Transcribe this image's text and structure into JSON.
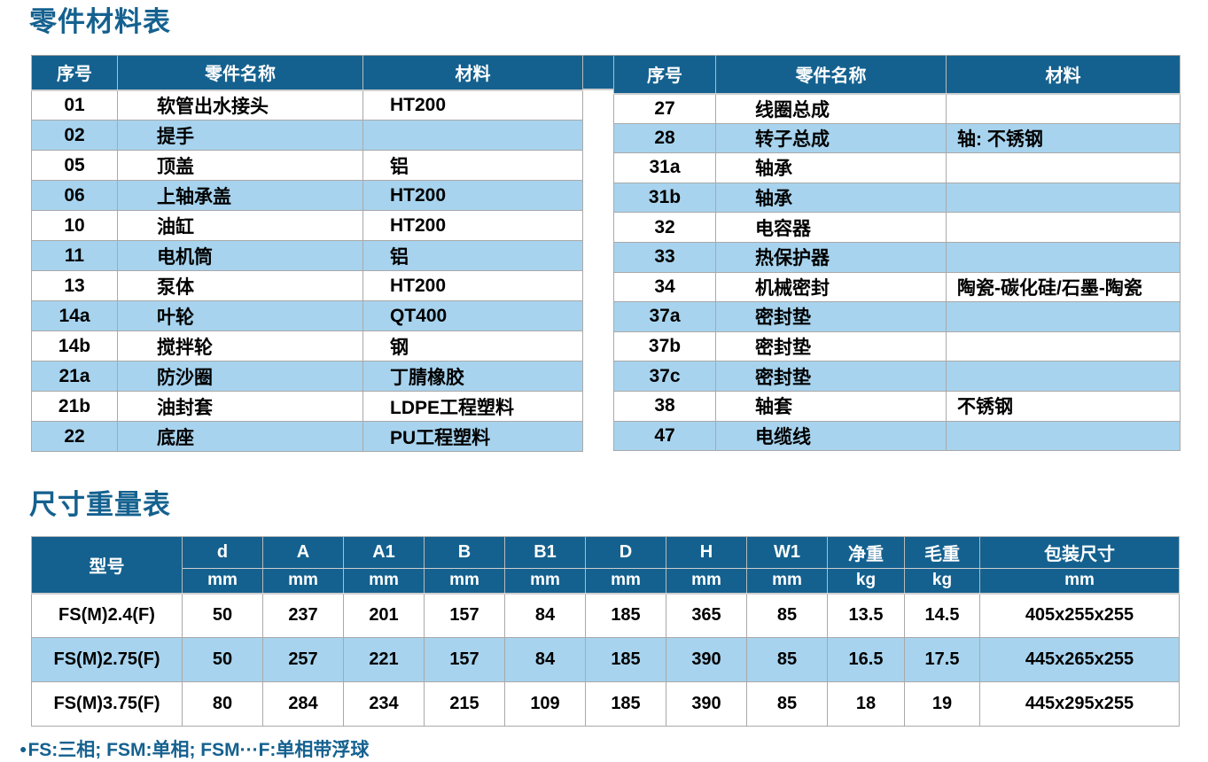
{
  "parts_section": {
    "title": "零件材料表",
    "headers": [
      "序号",
      "零件名称",
      "材料"
    ],
    "left_rows": [
      {
        "no": "01",
        "name": "软管出水接头",
        "material": "HT200"
      },
      {
        "no": "02",
        "name": "提手",
        "material": ""
      },
      {
        "no": "05",
        "name": "顶盖",
        "material": "铝"
      },
      {
        "no": "06",
        "name": "上轴承盖",
        "material": "HT200"
      },
      {
        "no": "10",
        "name": "油缸",
        "material": "HT200"
      },
      {
        "no": "11",
        "name": "电机筒",
        "material": "铝"
      },
      {
        "no": "13",
        "name": "泵体",
        "material": "HT200"
      },
      {
        "no": "14a",
        "name": "叶轮",
        "material": "QT400"
      },
      {
        "no": "14b",
        "name": "搅拌轮",
        "material": "钢"
      },
      {
        "no": "21a",
        "name": "防沙圈",
        "material": "丁腈橡胶"
      },
      {
        "no": "21b",
        "name": "油封套",
        "material": "LDPE工程塑料"
      },
      {
        "no": "22",
        "name": "底座",
        "material": "PU工程塑料"
      }
    ],
    "right_rows": [
      {
        "no": "27",
        "name": "线圈总成",
        "material": ""
      },
      {
        "no": "28",
        "name": "转子总成",
        "material": "轴: 不锈钢"
      },
      {
        "no": "31a",
        "name": "轴承",
        "material": ""
      },
      {
        "no": "31b",
        "name": "轴承",
        "material": ""
      },
      {
        "no": "32",
        "name": "电容器",
        "material": ""
      },
      {
        "no": "33",
        "name": "热保护器",
        "material": ""
      },
      {
        "no": "34",
        "name": "机械密封",
        "material": "陶瓷-碳化硅/石墨-陶瓷"
      },
      {
        "no": "37a",
        "name": "密封垫",
        "material": ""
      },
      {
        "no": "37b",
        "name": "密封垫",
        "material": ""
      },
      {
        "no": "37c",
        "name": "密封垫",
        "material": ""
      },
      {
        "no": "38",
        "name": "轴套",
        "material": "不锈钢"
      },
      {
        "no": "47",
        "name": "电缆线",
        "material": ""
      }
    ]
  },
  "dims_section": {
    "title": "尺寸重量表",
    "model_header": "型号",
    "columns": [
      {
        "label": "d",
        "unit": "mm"
      },
      {
        "label": "A",
        "unit": "mm"
      },
      {
        "label": "A1",
        "unit": "mm"
      },
      {
        "label": "B",
        "unit": "mm"
      },
      {
        "label": "B1",
        "unit": "mm"
      },
      {
        "label": "D",
        "unit": "mm"
      },
      {
        "label": "H",
        "unit": "mm"
      },
      {
        "label": "W1",
        "unit": "mm"
      },
      {
        "label": "净重",
        "unit": "kg"
      },
      {
        "label": "毛重",
        "unit": "kg"
      },
      {
        "label": "包装尺寸",
        "unit": "mm"
      }
    ],
    "rows": [
      {
        "model": "FS(M)2.4(F)",
        "values": [
          "50",
          "237",
          "201",
          "157",
          "84",
          "185",
          "365",
          "85",
          "13.5",
          "14.5",
          "405x255x255"
        ]
      },
      {
        "model": "FS(M)2.75(F)",
        "values": [
          "50",
          "257",
          "221",
          "157",
          "84",
          "185",
          "390",
          "85",
          "16.5",
          "17.5",
          "445x265x255"
        ]
      },
      {
        "model": "FS(M)3.75(F)",
        "values": [
          "80",
          "284",
          "234",
          "215",
          "109",
          "185",
          "390",
          "85",
          "18",
          "19",
          "445x295x255"
        ]
      }
    ]
  },
  "footnote": {
    "bullet": "●",
    "text": "FS:三相; FSM:单相; FSM···F:单相带浮球"
  },
  "colors": {
    "title_blue": "#14618f",
    "header_bg": "#14618f",
    "header_text": "#ffffff",
    "row_alt_blue": "#a7d3ee",
    "border_gray": "#a9a9a9"
  }
}
